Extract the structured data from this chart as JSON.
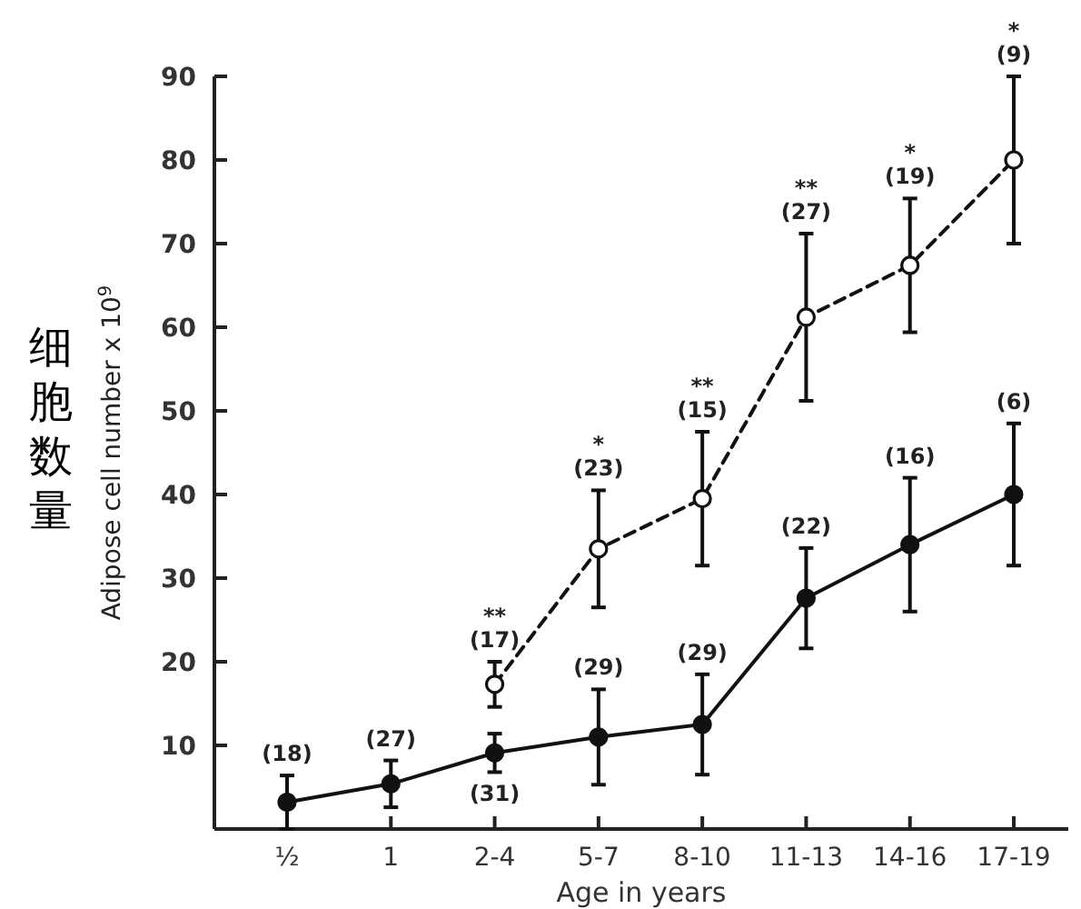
{
  "chart_data": {
    "type": "line",
    "ylabel": "Adipose cell number x 10$^{9}$",
    "xlabel": "Age in years",
    "categories": [
      "½",
      "1",
      "2-4",
      "5-7",
      "8-10",
      "11-13",
      "14-16",
      "17-19"
    ],
    "ylim": [
      0,
      90
    ],
    "yticks": [
      {
        "value": 0,
        "label": null
      },
      10,
      20,
      30,
      40,
      50,
      60,
      70,
      80,
      90
    ],
    "grid": false,
    "marker": "circle",
    "series": [
      {
        "color": "#111111",
        "line_style": "solid",
        "values": [
          3.2,
          5.4,
          9.1,
          11.0,
          12.5,
          27.6,
          34.0,
          40.0
        ],
        "errors": [
          3.2,
          2.8,
          2.3,
          5.7,
          6,
          6,
          8,
          8.5
        ]
      },
      {
        "color": "#111111",
        "line_style": "dashed",
        "values": [
          null,
          null,
          17.3,
          33.5,
          39.5,
          61.2,
          67.4,
          80.0
        ],
        "errors": [
          null,
          null,
          2.7,
          7,
          8,
          10,
          8,
          10
        ]
      }
    ],
    "annotations": [
      "细胞数量",
      {
        "text": "(18)",
        "x": "½",
        "y": 6.4
      },
      {
        "text": "(27)",
        "x": "1",
        "y": 8.2
      },
      {
        "text": "(31)",
        "x": "2-4",
        "y": 6.8
      },
      {
        "text": "(29)",
        "x": "5-7",
        "y": 16.7
      },
      {
        "text": "(29)",
        "x": "8-10",
        "y": 18.5
      },
      {
        "text": "(22)",
        "x": "11-13",
        "y": 33.6
      },
      {
        "text": "(16)",
        "x": "14-16",
        "y": 42
      },
      {
        "text": "(6)",
        "x": "17-19",
        "y": 48.5
      },
      {
        "text": "**\n(17)",
        "x": "2-4",
        "y": 20
      },
      {
        "text": "*\n(23)",
        "x": "5-7",
        "y": 40.5
      },
      {
        "text": "**\n(15)",
        "x": "8-10",
        "y": 47.5
      },
      {
        "text": "**\n(27)",
        "x": "11-13",
        "y": 71.2
      },
      {
        "text": "*\n(19)",
        "x": "14-16",
        "y": 75.4
      },
      {
        "text": "*\n(9)",
        "x": "17-19",
        "y": 90
      }
    ]
  }
}
